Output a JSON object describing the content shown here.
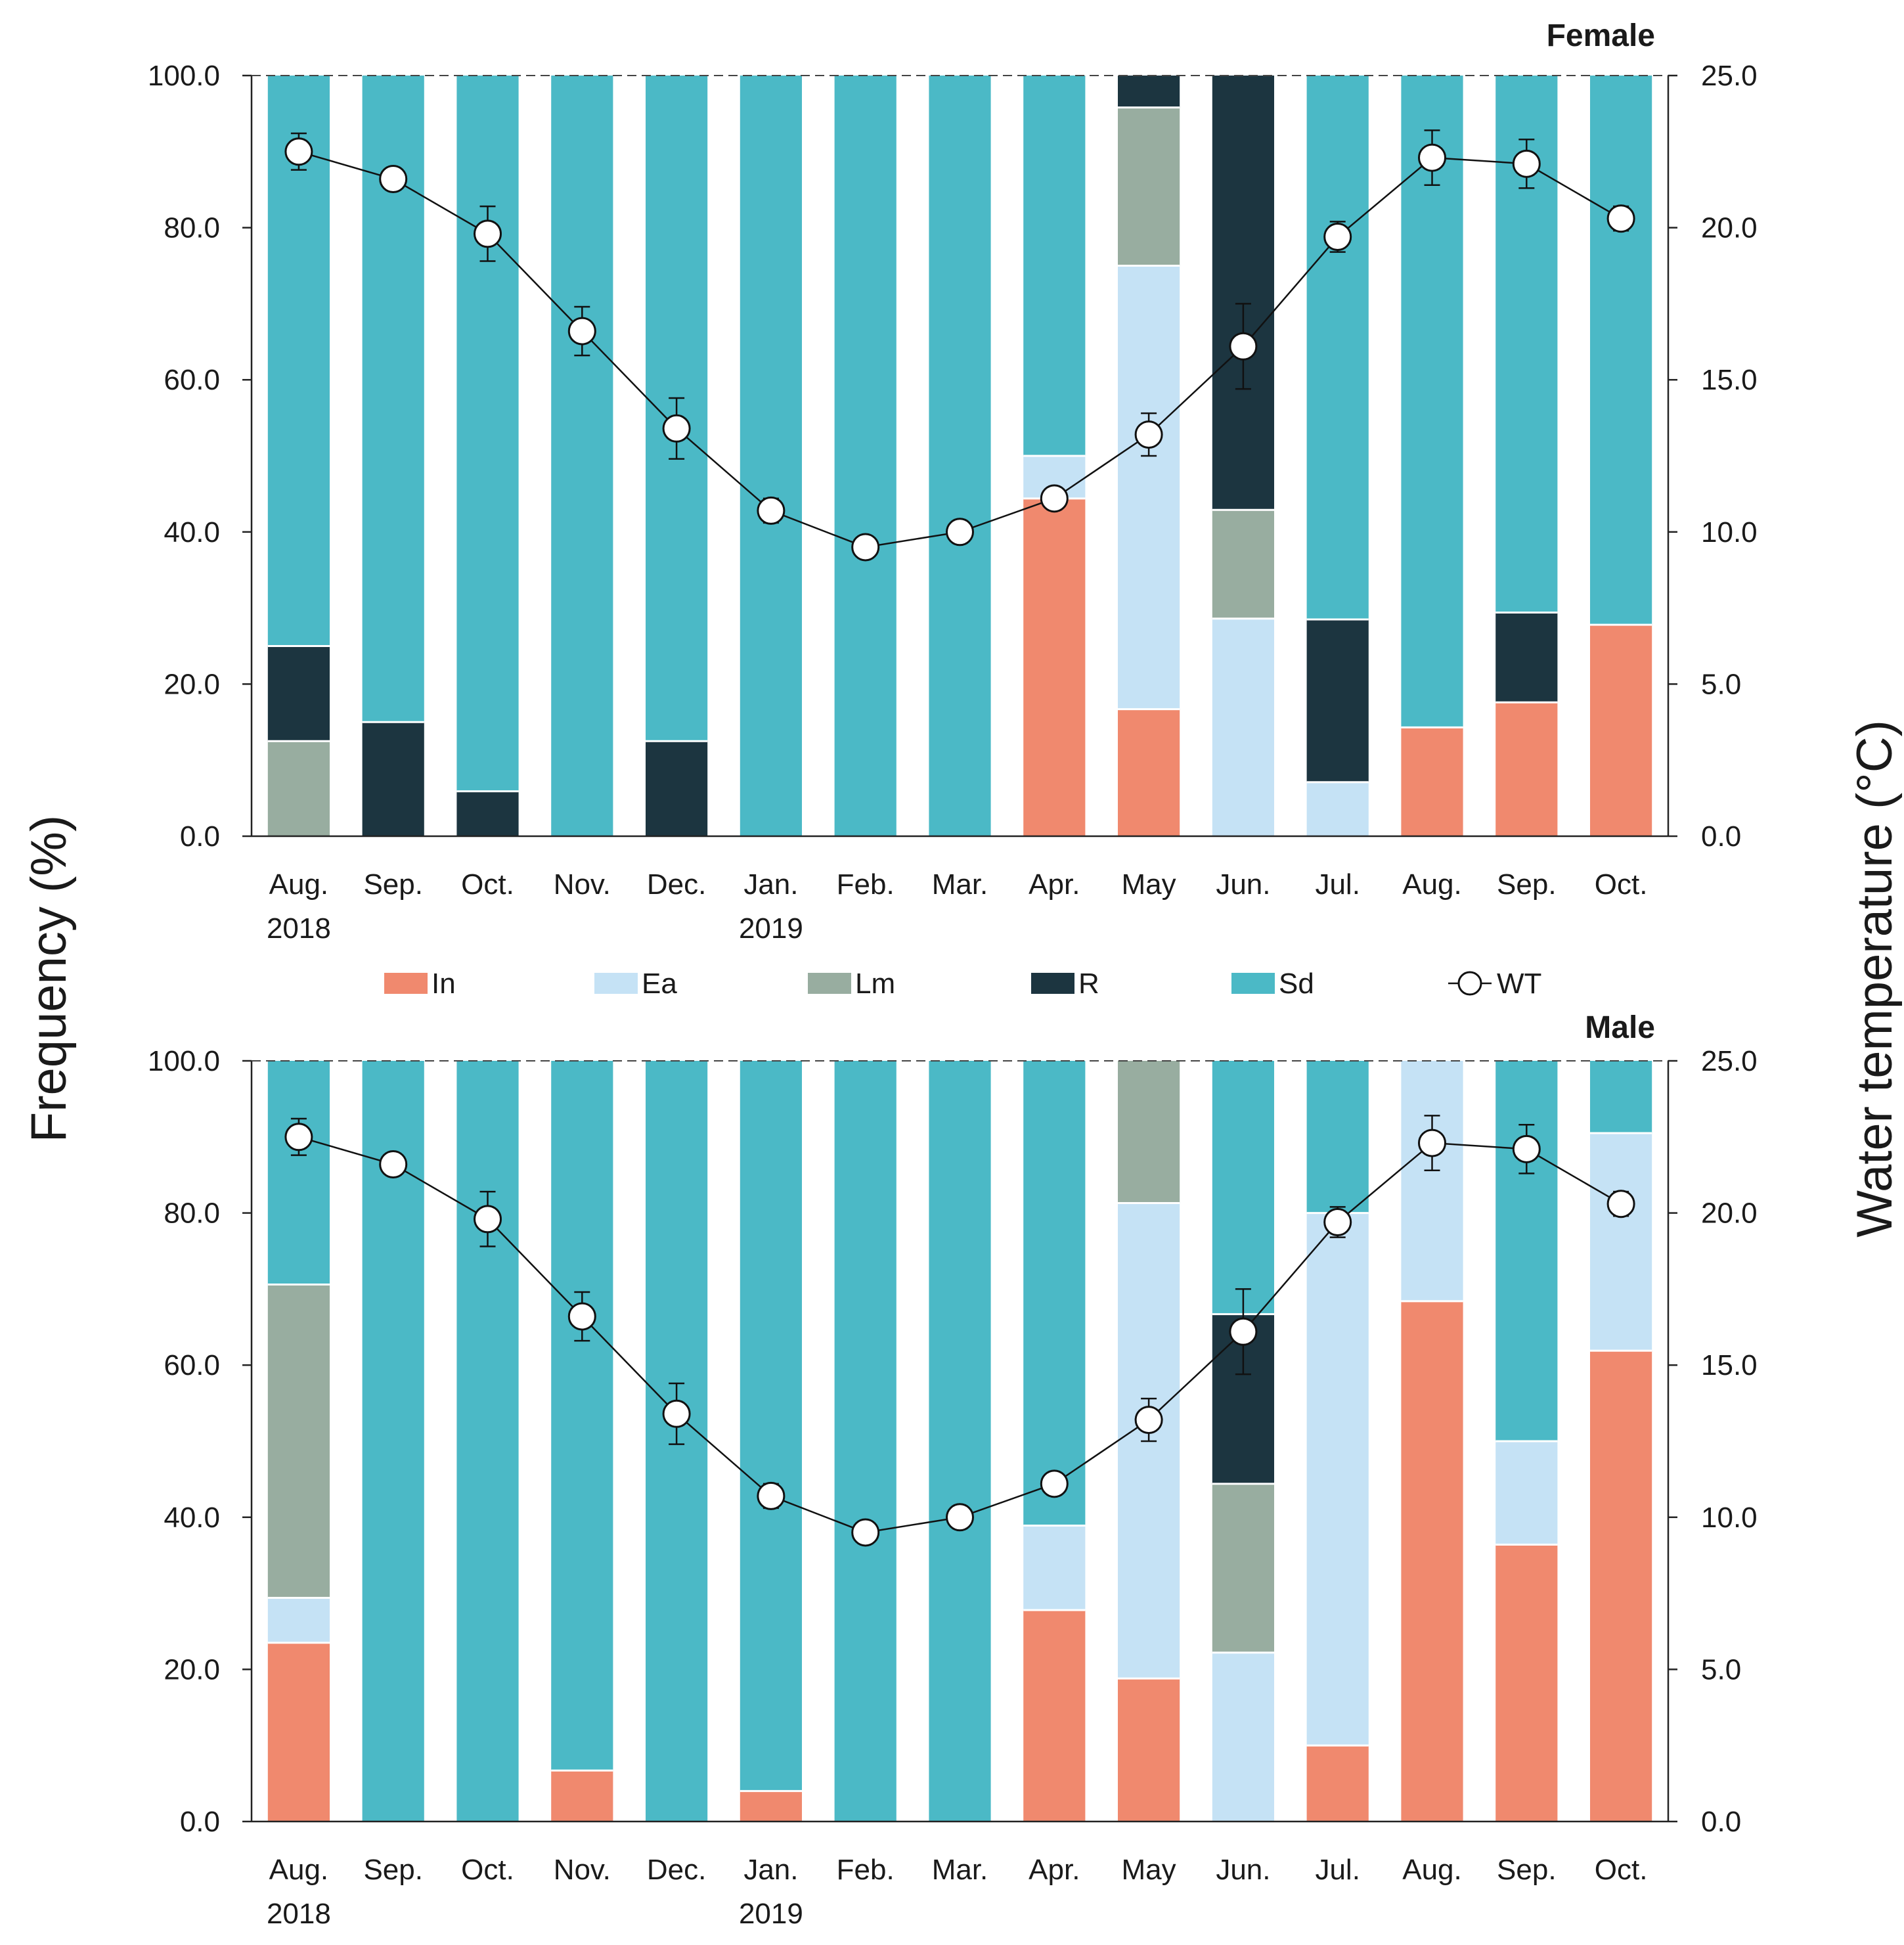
{
  "chart_data": [
    {
      "type": "bar",
      "stacked": true,
      "title": "Female",
      "categories": [
        "Aug.",
        "Sep.",
        "Oct.",
        "Nov.",
        "Dec.",
        "Jan.",
        "Feb.",
        "Mar.",
        "Apr.",
        "May",
        "Jun.",
        "Jul.",
        "Aug.",
        "Sep.",
        "Oct."
      ],
      "year_labels": {
        "0": "2018",
        "5": "2019"
      },
      "ylabel": "Frequency (%)",
      "ylim": [
        0,
        100
      ],
      "yticks": [
        "0.0",
        "20.0",
        "40.0",
        "60.0",
        "80.0",
        "100.0"
      ],
      "y2label": "Water temperature (°C)",
      "y2lim": [
        0,
        25
      ],
      "y2ticks": [
        "0.0",
        "5.0",
        "10.0",
        "15.0",
        "20.0",
        "25.0"
      ],
      "series": [
        {
          "name": "In",
          "color": "#f0896e",
          "values": [
            0,
            0,
            0,
            0,
            0,
            0,
            0,
            0,
            44.4,
            16.7,
            0,
            0,
            14.3,
            17.6,
            27.8
          ]
        },
        {
          "name": "Ea",
          "color": "#c5e2f5",
          "values": [
            0,
            0,
            0,
            0,
            0,
            0,
            0,
            0,
            5.6,
            58.3,
            28.6,
            7.1,
            0,
            0,
            0
          ]
        },
        {
          "name": "Lm",
          "color": "#98ada0",
          "values": [
            12.5,
            0,
            0,
            0,
            0,
            0,
            0,
            0,
            0,
            20.8,
            14.3,
            0,
            0,
            0,
            0
          ]
        },
        {
          "name": "R",
          "color": "#1c3540",
          "values": [
            12.5,
            15.0,
            5.9,
            0,
            12.5,
            0,
            0,
            0,
            0,
            4.2,
            57.1,
            21.4,
            0,
            11.8,
            0
          ]
        },
        {
          "name": "Sd",
          "color": "#4bb9c6",
          "values": [
            75.0,
            85.0,
            94.1,
            100,
            87.5,
            100,
            100,
            100,
            50.0,
            0,
            0,
            71.5,
            85.7,
            70.6,
            72.2
          ]
        }
      ],
      "wt": {
        "name": "WT",
        "values": [
          22.5,
          21.6,
          19.8,
          16.6,
          13.4,
          10.7,
          9.5,
          10.0,
          11.1,
          13.2,
          16.1,
          19.7,
          22.3,
          22.1,
          20.3
        ],
        "err": [
          0.6,
          0,
          0.9,
          0.8,
          1.0,
          0.4,
          0,
          0,
          0,
          0.7,
          1.4,
          0.5,
          0.9,
          0.8,
          0.4
        ]
      }
    },
    {
      "type": "bar",
      "stacked": true,
      "title": "Male",
      "categories": [
        "Aug.",
        "Sep.",
        "Oct.",
        "Nov.",
        "Dec.",
        "Jan.",
        "Feb.",
        "Mar.",
        "Apr.",
        "May",
        "Jun.",
        "Jul.",
        "Aug.",
        "Sep.",
        "Oct."
      ],
      "year_labels": {
        "0": "2018",
        "5": "2019"
      },
      "ylabel": "Frequency (%)",
      "ylim": [
        0,
        100
      ],
      "yticks": [
        "0.0",
        "20.0",
        "40.0",
        "60.0",
        "80.0",
        "100.0"
      ],
      "y2label": "Water temperature (°C)",
      "y2lim": [
        0,
        25
      ],
      "y2ticks": [
        "0.0",
        "5.0",
        "10.0",
        "15.0",
        "20.0",
        "25.0"
      ],
      "series": [
        {
          "name": "In",
          "color": "#f0896e",
          "values": [
            23.5,
            0,
            0,
            6.7,
            0,
            4.0,
            0,
            0,
            27.8,
            18.8,
            0,
            10.0,
            68.4,
            36.4,
            61.9
          ]
        },
        {
          "name": "Ea",
          "color": "#c5e2f5",
          "values": [
            5.9,
            0,
            0,
            0,
            0,
            0,
            0,
            0,
            11.1,
            62.5,
            22.2,
            70.0,
            31.6,
            13.6,
            28.6
          ]
        },
        {
          "name": "Lm",
          "color": "#98ada0",
          "values": [
            41.2,
            0,
            0,
            0,
            0,
            0,
            0,
            0,
            0,
            18.7,
            22.2,
            0,
            0,
            0,
            0
          ]
        },
        {
          "name": "R",
          "color": "#1c3540",
          "values": [
            0,
            0,
            0,
            0,
            0,
            0,
            0,
            0,
            0,
            0,
            22.3,
            0,
            0,
            0,
            0
          ]
        },
        {
          "name": "Sd",
          "color": "#4bb9c6",
          "values": [
            29.4,
            100,
            100,
            93.3,
            100,
            96.0,
            100,
            100,
            61.1,
            0,
            33.3,
            20.0,
            0,
            50.0,
            9.5
          ]
        }
      ],
      "wt": {
        "name": "WT",
        "values": [
          22.5,
          21.6,
          19.8,
          16.6,
          13.4,
          10.7,
          9.5,
          10.0,
          11.1,
          13.2,
          16.1,
          19.7,
          22.3,
          22.1,
          20.3
        ],
        "err": [
          0.6,
          0,
          0.9,
          0.8,
          1.0,
          0.4,
          0,
          0,
          0,
          0.7,
          1.4,
          0.5,
          0.9,
          0.8,
          0.4
        ]
      }
    }
  ],
  "legend": [
    {
      "name": "In",
      "color": "#f0896e"
    },
    {
      "name": "Ea",
      "color": "#c5e2f5"
    },
    {
      "name": "Lm",
      "color": "#98ada0"
    },
    {
      "name": "R",
      "color": "#1c3540"
    },
    {
      "name": "Sd",
      "color": "#4bb9c6"
    },
    {
      "name": "WT",
      "marker": "circle"
    }
  ],
  "shared_ylabel": "Frequency (%)",
  "shared_y2label": "Water temperature (°C)"
}
